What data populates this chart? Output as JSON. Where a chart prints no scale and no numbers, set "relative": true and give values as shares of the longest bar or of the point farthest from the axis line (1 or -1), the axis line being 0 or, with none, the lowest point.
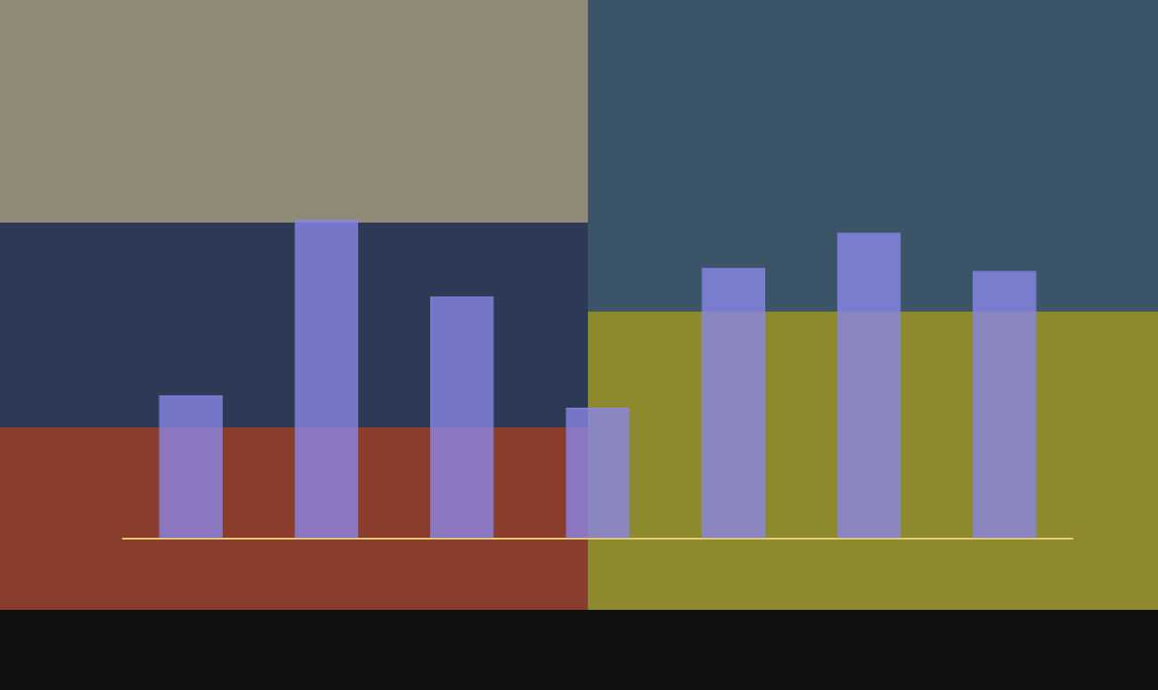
{
  "chart_data": {
    "type": "bar",
    "relative": true,
    "categories": [
      null,
      null,
      null,
      null,
      null,
      null,
      null
    ],
    "series": [
      {
        "color": "#8a86e6",
        "values": [
          0.45,
          1,
          0.76,
          0.41,
          0.85,
          0.96,
          0.84
        ]
      }
    ],
    "grid": false,
    "legend": false
  }
}
